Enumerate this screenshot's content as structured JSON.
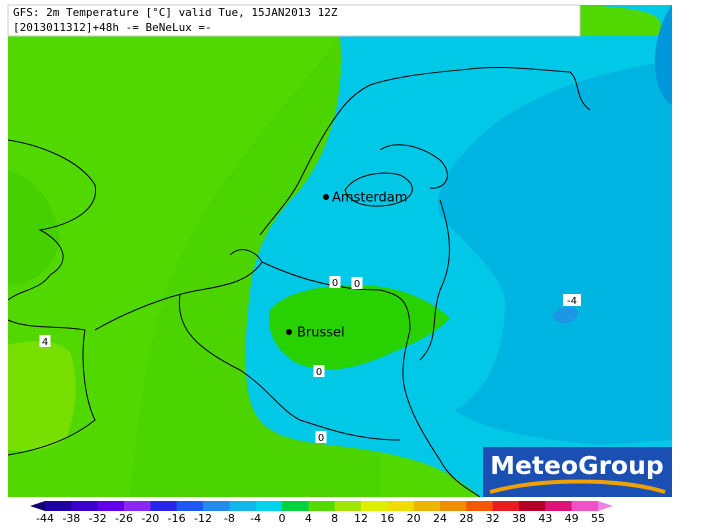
{
  "header": {
    "title": "GFS: 2m Temperature [°C] valid Tue, 15JAN2013 12Z",
    "subtitle": "[2013011312]+48h -= BeNeLux =-"
  },
  "cities": [
    "Amsterdam",
    "Brussel"
  ],
  "contours": [
    0,
    0,
    0,
    0,
    4,
    -4
  ],
  "logo": "MeteoGroup",
  "legend": {
    "ticks": [
      -44,
      -38,
      -32,
      -26,
      -20,
      -16,
      -12,
      -8,
      -4,
      0,
      4,
      8,
      12,
      16,
      20,
      24,
      28,
      32,
      38,
      43,
      49,
      55
    ],
    "colors": [
      "#14006e",
      "#1e00a0",
      "#3c00c8",
      "#6400e6",
      "#8c28f0",
      "#2828e6",
      "#1e5af0",
      "#1e8cf0",
      "#14b4f0",
      "#00d2f0",
      "#00d23c",
      "#50dc00",
      "#a0e600",
      "#dcf000",
      "#f0dc00",
      "#f0b400",
      "#f08c00",
      "#f05a00",
      "#e61e1e",
      "#b40028",
      "#dc1478",
      "#f050c8",
      "#f082e6"
    ]
  }
}
